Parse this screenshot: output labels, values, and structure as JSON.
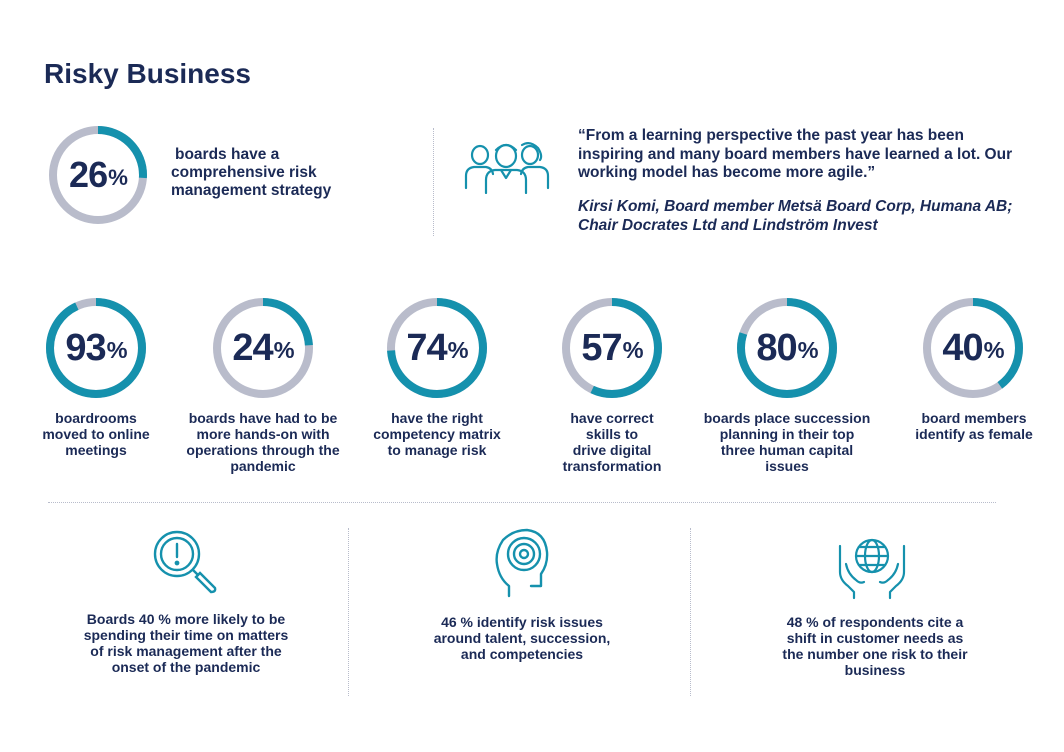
{
  "title": "Risky Business",
  "colors": {
    "accent": "#1591ad",
    "track": "#b9bccb",
    "text": "#1b2a56"
  },
  "top_stat": {
    "value": 26,
    "percent": "26",
    "sign": "%",
    "label_line1": "boards have a",
    "label_line2": "comprehensive risk",
    "label_line3": "management strategy"
  },
  "quote": {
    "text": "“From a learning perspective the past year has been inspiring and many board members have learned a lot. Our working model has become more agile.”",
    "attribution": "Kirsi Komi, Board member Metsä Board Corp, Humana AB; Chair Docrates Ltd and Lindström Invest",
    "icon": "team-people-icon"
  },
  "stats": [
    {
      "value": 93,
      "percent": "93",
      "sign": "%",
      "lines": [
        "boardrooms",
        "moved to online",
        "meetings"
      ]
    },
    {
      "value": 24,
      "percent": "24",
      "sign": "%",
      "lines": [
        "boards have had to be",
        "more hands-on with",
        "operations through the",
        "pandemic"
      ]
    },
    {
      "value": 74,
      "percent": "74",
      "sign": "%",
      "lines": [
        "have the right",
        "competency matrix",
        "to manage risk"
      ]
    },
    {
      "value": 57,
      "percent": "57",
      "sign": "%",
      "lines": [
        "have correct",
        "skills to",
        "drive digital",
        "transformation"
      ]
    },
    {
      "value": 80,
      "percent": "80",
      "sign": "%",
      "lines": [
        "boards place succession",
        "planning in their top",
        "three human capital",
        "issues"
      ]
    },
    {
      "value": 40,
      "percent": "40",
      "sign": "%",
      "lines": [
        "board members",
        "identify as female"
      ]
    }
  ],
  "bottom": [
    {
      "icon": "magnifier-exclamation-icon",
      "lines": [
        "Boards 40 % more likely to be",
        "spending their time on matters",
        "of risk management after the",
        "onset of the pandemic"
      ]
    },
    {
      "icon": "head-target-icon",
      "lines": [
        "46 % identify risk issues",
        "around talent, succession,",
        "and competencies"
      ]
    },
    {
      "icon": "hands-globe-icon",
      "lines": [
        "48 % of respondents cite a",
        "shift in customer needs as",
        "the number one risk to their",
        "business"
      ]
    }
  ]
}
